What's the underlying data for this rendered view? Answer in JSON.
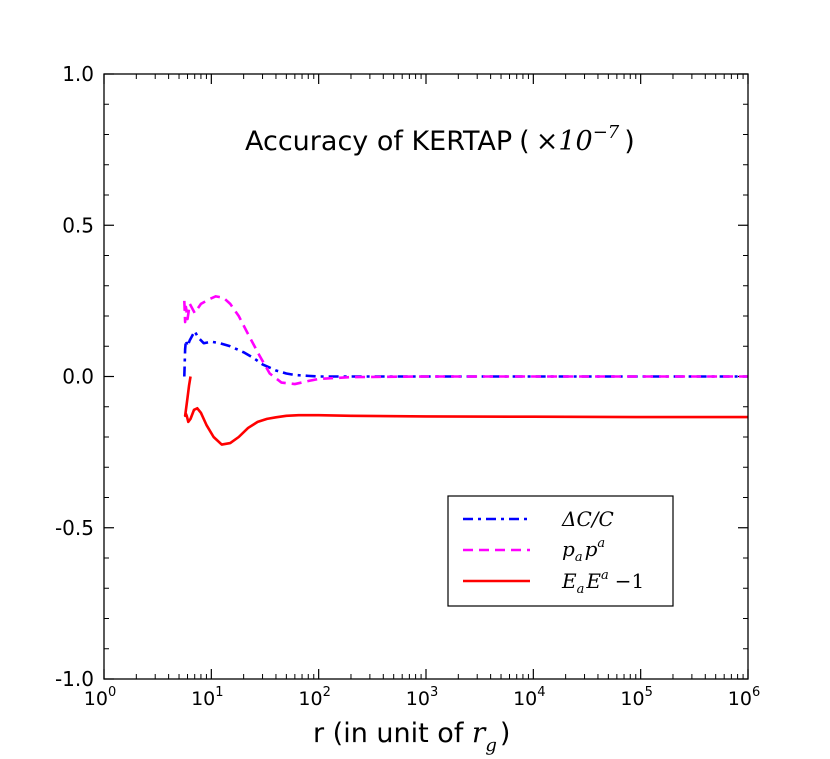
{
  "chart_data": {
    "type": "line",
    "title": "Accuracy of KERTAP",
    "title_factor": "×10",
    "title_factor_exp": "−7",
    "title_paren_open": "(",
    "title_paren_close": ")",
    "xlabel": "r (in unit of ",
    "xlabel_math": "r",
    "xlabel_math_sub": "g",
    "xlabel_close": ")",
    "ylabel": "",
    "xscale": "log",
    "xlim": [
      1,
      1000000
    ],
    "ylim": [
      -1.0,
      1.0
    ],
    "grid": false,
    "legend_position": "lower-right",
    "x_ticks": [
      {
        "base": "10",
        "exp": "0",
        "value": 1
      },
      {
        "base": "10",
        "exp": "1",
        "value": 10
      },
      {
        "base": "10",
        "exp": "2",
        "value": 100
      },
      {
        "base": "10",
        "exp": "3",
        "value": 1000
      },
      {
        "base": "10",
        "exp": "4",
        "value": 10000
      },
      {
        "base": "10",
        "exp": "5",
        "value": 100000
      },
      {
        "base": "10",
        "exp": "6",
        "value": 1000000
      }
    ],
    "y_ticks": [
      {
        "label": "1.0",
        "value": 1.0
      },
      {
        "label": "0.5",
        "value": 0.5
      },
      {
        "label": "0.0",
        "value": 0.0
      },
      {
        "label": "-0.5",
        "value": -0.5
      },
      {
        "label": "-1.0",
        "value": -1.0
      }
    ],
    "series": [
      {
        "name": "ΔC/C",
        "legend_label": "ΔC/C",
        "color": "#0000ff",
        "style": "dashdot",
        "x": [
          5.6,
          5.7,
          5.8,
          6.0,
          6.3,
          7.0,
          7.5,
          8.5,
          10,
          12,
          15,
          20,
          25,
          30,
          40,
          50,
          60,
          80,
          100,
          200,
          1000,
          10000,
          100000,
          1000000
        ],
        "y": [
          0.0,
          0.09,
          0.12,
          0.1,
          0.12,
          0.15,
          0.13,
          0.11,
          0.115,
          0.11,
          0.1,
          0.08,
          0.06,
          0.04,
          0.02,
          0.01,
          0.005,
          0.002,
          0.0,
          0.0,
          0.0,
          0.0,
          0.0,
          0.0
        ]
      },
      {
        "name": "p_a p^a",
        "legend_label_main": "p",
        "legend_label_sub": "a",
        "legend_label_main2": "p",
        "legend_label_sup": "a",
        "color": "#ff00ff",
        "style": "dashed",
        "x": [
          5.6,
          5.7,
          5.8,
          6.0,
          6.3,
          7.0,
          8.0,
          9.5,
          11,
          13,
          15,
          18,
          22,
          28,
          35,
          45,
          60,
          80,
          100,
          200,
          1000,
          10000,
          100000,
          1000000
        ],
        "y": [
          0.25,
          0.18,
          0.23,
          0.19,
          0.24,
          0.21,
          0.24,
          0.255,
          0.265,
          0.26,
          0.24,
          0.2,
          0.14,
          0.07,
          0.01,
          -0.02,
          -0.025,
          -0.015,
          -0.008,
          -0.002,
          0.0,
          0.0,
          0.0,
          0.0
        ]
      },
      {
        "name": "E_a E^a −1",
        "legend_label_main": "E",
        "legend_label_sub": "a",
        "legend_label_main2": "E",
        "legend_label_sup": "a",
        "legend_label_tail": "−1",
        "color": "#ff0000",
        "style": "solid",
        "x": [
          6.4,
          6.2,
          6.0,
          5.9,
          5.8,
          5.7,
          5.75,
          5.9,
          6.1,
          6.4,
          6.9,
          7.4,
          8.0,
          9.0,
          10.5,
          12.5,
          15,
          18,
          22,
          27,
          33,
          40,
          50,
          65,
          80,
          100,
          200,
          1000,
          10000,
          100000,
          1000000
        ],
        "y": [
          0.0,
          -0.03,
          -0.07,
          -0.09,
          -0.11,
          -0.13,
          -0.12,
          -0.13,
          -0.15,
          -0.14,
          -0.11,
          -0.105,
          -0.12,
          -0.16,
          -0.2,
          -0.225,
          -0.22,
          -0.2,
          -0.17,
          -0.15,
          -0.14,
          -0.135,
          -0.13,
          -0.128,
          -0.128,
          -0.128,
          -0.13,
          -0.132,
          -0.133,
          -0.134,
          -0.134
        ]
      }
    ]
  }
}
